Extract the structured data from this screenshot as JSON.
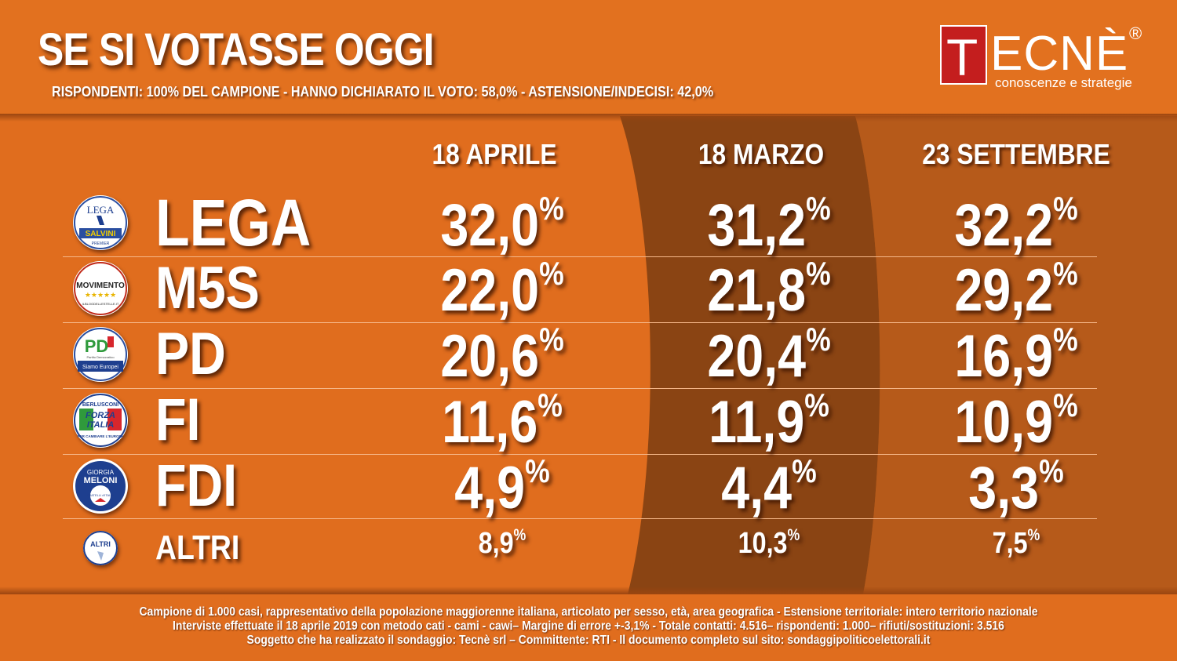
{
  "header": {
    "title": "SE SI VOTASSE OGGI",
    "subtitle": "RISPONDENTI: 100% DEL CAMPIONE - HANNO DICHIARATO IL VOTO: 58,0%  - ASTENSIONE/INDECISI: 42,0%"
  },
  "brand": {
    "initial": "T",
    "rest": "ECNÈ",
    "registered": "®",
    "tagline": "conoscenze e strategie",
    "color": "#c41e1e"
  },
  "colors": {
    "background": "#e06d1e",
    "middle_column": "#8a4413",
    "right_column": "#b65a1a"
  },
  "party_logos": {
    "lega": {
      "text_top": "LEGA",
      "text_bottom": "SALVINI",
      "text_small": "PREMIER"
    },
    "m5s": {
      "text": "MOVIMENTO",
      "stars": "★★★★★",
      "text_small": "ILBLOGDELLESTELLE.IT"
    },
    "pd": {
      "text": "PD",
      "text_small": "Partito Democratico",
      "text_bottom": "Siamo Europei"
    },
    "fi": {
      "text_top": "BERLUSCONI",
      "text_mid1": "FORZA",
      "text_mid2": "ITALIA",
      "text_bottom": "PER CAMBIARE L'EUROPA"
    },
    "fdi": {
      "text_top": "GIORGIA",
      "text_mid": "MELONI",
      "text_bottom": "FRATELLI d'ITALIA"
    },
    "altri": {
      "text": "ALTRI"
    }
  },
  "chart_data": {
    "type": "table",
    "columns": [
      "18 APRILE",
      "18 MARZO",
      "23 SETTEMBRE"
    ],
    "unit": "%",
    "rows": [
      {
        "party": "LEGA",
        "values": [
          "32,0",
          "31,2",
          "32,2"
        ]
      },
      {
        "party": "M5S",
        "values": [
          "22,0",
          "21,8",
          "29,2"
        ]
      },
      {
        "party": "PD",
        "values": [
          "20,6",
          "20,4",
          "16,9"
        ]
      },
      {
        "party": "FI",
        "values": [
          "11,6",
          "11,9",
          "10,9"
        ]
      },
      {
        "party": "FDI",
        "values": [
          "4,9",
          "4,4",
          "3,3"
        ]
      },
      {
        "party": "ALTRI",
        "values": [
          "8,9",
          "10,3",
          "7,5"
        ]
      }
    ]
  },
  "footer": {
    "line1": "Campione di 1.000 casi, rappresentativo della popolazione maggiorenne italiana, articolato per sesso, età, area geografica - Estensione territoriale: intero territorio nazionale",
    "line2": "Interviste effettuate il 18 aprile 2019 con metodo cati - cami - cawi– Margine di errore +-3,1%  - Totale contatti: 4.516– rispondenti:  1.000– rifiuti/sostituzioni: 3.516",
    "line3": "Soggetto che ha realizzato il sondaggio: Tecnè srl – Committente: RTI - Il documento completo sul sito: sondaggipoliticoelettorali.it"
  }
}
